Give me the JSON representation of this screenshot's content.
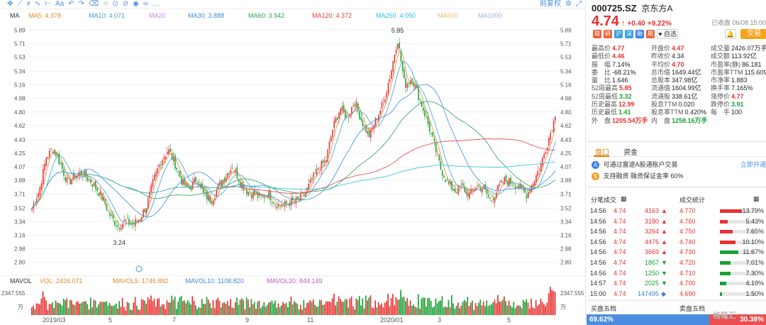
{
  "toolbar": {
    "adjust": "前复权"
  },
  "ma_legend": [
    {
      "label": "MA",
      "value": "",
      "color": "#333333"
    },
    {
      "label": "MA5:",
      "value": "4.378",
      "color": "#e08a2a"
    },
    {
      "label": "MA10:",
      "value": "4.071",
      "color": "#3aa0d8"
    },
    {
      "label": "MA20",
      "value": "",
      "color": "#c58ae0"
    },
    {
      "label": "MA30:",
      "value": "3.888",
      "color": "#3a8ce0"
    },
    {
      "label": "MA60:",
      "value": "3.942",
      "color": "#2aa05a"
    },
    {
      "label": "MA120:",
      "value": "4.372",
      "color": "#e04040"
    },
    {
      "label": "MA250:",
      "value": "4.050",
      "color": "#2ac0d8"
    },
    {
      "label": "MA500",
      "value": "",
      "color": "#e0c070"
    },
    {
      "label": "MA1000",
      "value": "",
      "color": "#a0b0e0"
    }
  ],
  "vol_legend": [
    {
      "label": "MAVOL",
      "value": "",
      "color": "#333333"
    },
    {
      "label": "VOL:",
      "value": "2426.071",
      "color": "#e08a2a"
    },
    {
      "label": "MAVOL5:",
      "value": "1746.882",
      "color": "#e08a2a"
    },
    {
      "label": "MAVOL10:",
      "value": "1108.820",
      "color": "#3a8ce0"
    },
    {
      "label": "MAVOL20:",
      "value": "844.149",
      "color": "#c058c0"
    }
  ],
  "chart_data": {
    "type": "candlestick",
    "y_ticks": [
      "5.89",
      "5.71",
      "5.53",
      "5.34",
      "5.16",
      "4.98",
      "4.80",
      "4.62",
      "4.43",
      "4.25",
      "4.07",
      "3.89",
      "3.71",
      "3.52",
      "3.34",
      "3.16",
      "2.98",
      "2.80"
    ],
    "ylim": [
      2.74,
      5.95
    ],
    "annotations": [
      {
        "text": "5.85",
        "price": 5.85
      },
      {
        "text": "3.24",
        "price": 3.24
      }
    ],
    "last_close": 4.74,
    "volume_max_label": "2347.555",
    "volume_unit": "万",
    "x_labels": [
      "2019/03",
      "5",
      "7",
      "9",
      "11",
      "2020/01",
      "3",
      "5"
    ],
    "price_path": [
      3.52,
      3.75,
      4.2,
      4.32,
      4.1,
      3.85,
      3.96,
      3.98,
      3.9,
      3.78,
      3.62,
      3.4,
      3.28,
      3.35,
      3.3,
      3.38,
      3.55,
      3.9,
      4.15,
      4.3,
      4.1,
      3.85,
      3.78,
      3.92,
      3.7,
      3.62,
      3.8,
      3.95,
      4.08,
      3.88,
      3.75,
      3.7,
      3.66,
      3.72,
      3.58,
      3.55,
      3.6,
      3.62,
      3.7,
      3.88,
      4.05,
      4.15,
      4.6,
      4.85,
      4.72,
      4.95,
      4.68,
      4.48,
      4.7,
      4.92,
      5.3,
      5.78,
      5.15,
      5.25,
      5.0,
      4.72,
      4.4,
      4.05,
      3.85,
      3.75,
      3.8,
      3.7,
      3.82,
      3.78,
      3.62,
      3.78,
      3.9,
      3.85,
      3.8,
      3.7,
      3.88,
      4.1,
      4.42,
      4.74
    ]
  },
  "quote": {
    "code": "000725.SZ",
    "name": "京东方A",
    "date": "已收盘 06/08 15:00",
    "price": "4.74",
    "arrow": "↑",
    "change": "+0.40",
    "change_pct": "+9.22%",
    "fav": "自选",
    "trade": "交易"
  },
  "stats": [
    [
      {
        "l": "最高价",
        "v": "4.77",
        "c": "red"
      },
      {
        "l": "开盘价",
        "v": "4.47",
        "c": "red"
      },
      {
        "l": "成交量",
        "v": "2426.07万手",
        "c": ""
      }
    ],
    [
      {
        "l": "最低价",
        "v": "4.46",
        "c": "red"
      },
      {
        "l": "昨收价",
        "v": "4.34",
        "c": ""
      },
      {
        "l": "成交额",
        "v": "113.92亿",
        "c": ""
      }
    ],
    [
      {
        "l": "振　幅",
        "v": "7.14%",
        "c": ""
      },
      {
        "l": "平均价",
        "v": "4.70",
        "c": "red"
      },
      {
        "l": "市盈率(静)",
        "v": "86.181",
        "c": ""
      }
    ],
    [
      {
        "l": "委　比",
        "v": "-68.21%",
        "c": ""
      },
      {
        "l": "总市值",
        "v": "1649.44亿",
        "c": ""
      },
      {
        "l": "市盈率TTM",
        "v": "115.609",
        "c": ""
      }
    ],
    [
      {
        "l": "量　比",
        "v": "1.646",
        "c": ""
      },
      {
        "l": "总股本",
        "v": "347.98亿",
        "c": ""
      },
      {
        "l": "市净率",
        "v": "1.883",
        "c": ""
      }
    ],
    [
      {
        "l": "52周最高",
        "v": "5.85",
        "c": "red"
      },
      {
        "l": "流通值",
        "v": "1604.99亿",
        "c": ""
      },
      {
        "l": "换手率",
        "v": "7.165%",
        "c": ""
      }
    ],
    [
      {
        "l": "52周最低",
        "v": "3.32",
        "c": "green"
      },
      {
        "l": "流通股",
        "v": "338.61亿",
        "c": ""
      },
      {
        "l": "涨停价",
        "v": "4.77",
        "c": "red"
      }
    ],
    [
      {
        "l": "历史最高",
        "v": "12.99",
        "c": "red"
      },
      {
        "l": "股息TTM",
        "v": "0.020",
        "c": ""
      },
      {
        "l": "跌停价",
        "v": "3.91",
        "c": "green"
      }
    ],
    [
      {
        "l": "历史最低",
        "v": "1.41",
        "c": "green"
      },
      {
        "l": "股息率TTM",
        "v": "0.420%",
        "c": ""
      },
      {
        "l": "每　手",
        "v": "100",
        "c": ""
      }
    ],
    [
      {
        "l": "外　盘",
        "v": "1205.54万手",
        "c": "red"
      },
      {
        "l": "内　盘",
        "v": "1258.16万手",
        "c": "green"
      },
      {
        "l": "",
        "v": "",
        "c": ""
      }
    ]
  ],
  "tabs": [
    "盘口",
    "资金"
  ],
  "info": {
    "line1": "可通过富途A股通账户交易",
    "open_link": "立即开通",
    "line2": "支持融资  融资保证金率 60%"
  },
  "tick_header": {
    "left": "分笔成交",
    "right": "成交统计"
  },
  "ticks": [
    {
      "time": "14:56",
      "price": "4.74",
      "vol": "4163",
      "dir": "▲",
      "dc": "red",
      "stat_price": "4.770",
      "pct": "13.79%",
      "frac": 0.14
    },
    {
      "time": "14:56",
      "price": "4.74",
      "vol": "3180",
      "dir": "▲",
      "dc": "red",
      "stat_price": "4.760",
      "pct": "5.43%",
      "frac": 0.05
    },
    {
      "time": "14:56",
      "price": "4.74",
      "vol": "3264",
      "dir": "▲",
      "dc": "red",
      "stat_price": "4.750",
      "pct": "7.65%",
      "frac": 0.08
    },
    {
      "time": "14:56",
      "price": "4.74",
      "vol": "4476",
      "dir": "▲",
      "dc": "red",
      "stat_price": "4.740",
      "pct": "10.10%",
      "frac": 0.1
    },
    {
      "time": "14:56",
      "price": "4.74",
      "vol": "3669",
      "dir": "▲",
      "dc": "red",
      "stat_price": "4.730",
      "pct": "11.67%",
      "frac": 0.12
    },
    {
      "time": "14:56",
      "price": "4.74",
      "vol": "1867",
      "dir": "▼",
      "dc": "green",
      "stat_price": "4.720",
      "pct": "7.01%",
      "frac": 0.07
    },
    {
      "time": "14:56",
      "price": "4.74",
      "vol": "1250",
      "dir": "▼",
      "dc": "green",
      "stat_price": "4.710",
      "pct": "7.30%",
      "frac": 0.07
    },
    {
      "time": "14:57",
      "price": "4.74",
      "vol": "2025",
      "dir": "▼",
      "dc": "green",
      "stat_price": "4.700",
      "pct": "4.19%",
      "frac": 0.04
    },
    {
      "time": "15:00",
      "price": "4.74",
      "vol": "147495",
      "dir": "◆",
      "dc": "blue",
      "stat_price": "4.690",
      "pct": "1.50%",
      "frac": 0.015
    }
  ],
  "book": {
    "sell_label": "买盘五档",
    "buy_label": "卖盘五档",
    "left_pct": "69.62%",
    "right_pct": "30.38%"
  },
  "watermark": "格隆汇",
  "colors": {
    "up": "#e93030",
    "down": "#1aa034",
    "accent": "#e07b00",
    "link": "#4a90e2"
  }
}
